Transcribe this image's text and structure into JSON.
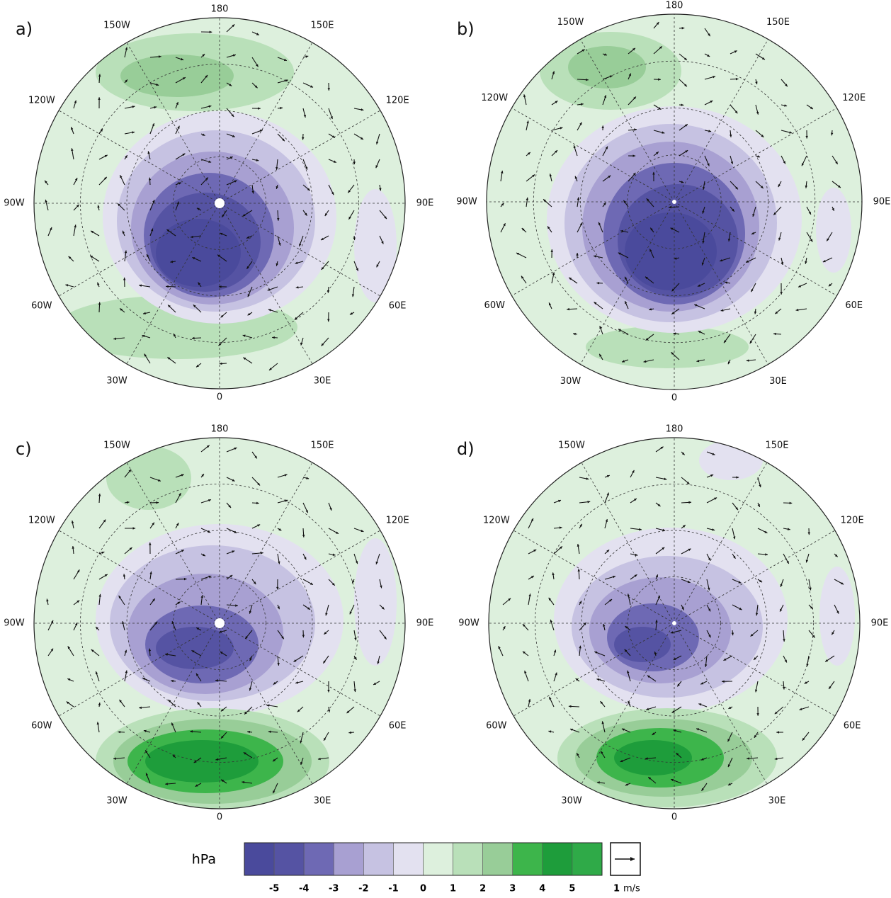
{
  "figure": {
    "panels": [
      {
        "label": "a)"
      },
      {
        "label": "b)"
      },
      {
        "label": "c)"
      },
      {
        "label": "d)"
      }
    ],
    "longitude_labels": [
      "0",
      "30E",
      "60E",
      "90E",
      "120E",
      "150E",
      "180",
      "150W",
      "120W",
      "90W",
      "60W",
      "30W"
    ],
    "colorbar": {
      "unit": "hPa",
      "colors": [
        "#4a4a9c",
        "#5553a3",
        "#6e69b4",
        "#a8a0d2",
        "#c6c2e2",
        "#e3e1f0",
        "#ddf0dd",
        "#b9e0b9",
        "#98cd98",
        "#3db54b",
        "#1e9d3b",
        "#2faa48"
      ],
      "tick_labels": [
        "-5",
        "-4",
        "-3",
        "-2",
        "-1",
        "0",
        "1",
        "2",
        "3",
        "4",
        "5"
      ]
    },
    "reference_vector": {
      "value": "1",
      "unit": "m/s"
    }
  }
}
